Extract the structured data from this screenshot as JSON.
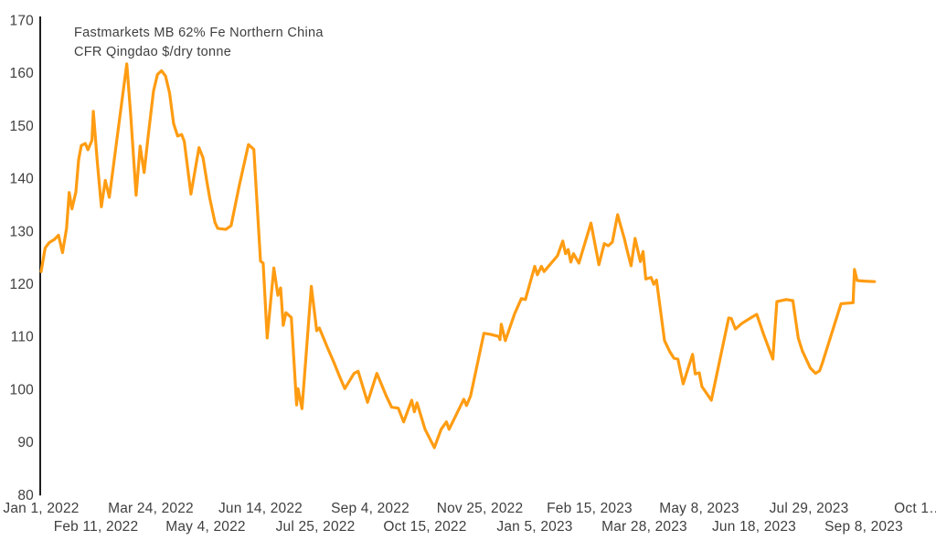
{
  "chart": {
    "title_line1": "Fastmarkets MB 62% Fe Northern China",
    "title_line2": "CFR Qingdao $/dry tonne"
  },
  "chart_data": {
    "type": "line",
    "title": "Fastmarkets MB 62% Fe Northern China CFR Qingdao $/dry tonne",
    "xlabel": "",
    "ylabel": "",
    "unit": "$/dry tonne",
    "ylim": [
      80,
      170
    ],
    "y_ticks": [
      170,
      160,
      150,
      140,
      130,
      120,
      110,
      100,
      90,
      80
    ],
    "x_axis_span_days": 656,
    "x_unit": "days since Jan 1, 2022",
    "grid": false,
    "legend": "none",
    "line_color": "#FF9C12",
    "text_color": "#3F3F3F",
    "axis_color": "#1F1F1F",
    "x_ticks": [
      {
        "label": "Jan 1, 2022",
        "day": 0,
        "row": 1
      },
      {
        "label": "Feb 11, 2022",
        "day": 41,
        "row": 2
      },
      {
        "label": "Mar 24, 2022",
        "day": 82,
        "row": 1
      },
      {
        "label": "May 4, 2022",
        "day": 123,
        "row": 2
      },
      {
        "label": "Jun 14, 2022",
        "day": 164,
        "row": 1
      },
      {
        "label": "Jul 25, 2022",
        "day": 205,
        "row": 2
      },
      {
        "label": "Sep 4, 2022",
        "day": 246,
        "row": 1
      },
      {
        "label": "Oct 15, 2022",
        "day": 287,
        "row": 2
      },
      {
        "label": "Nov 25, 2022",
        "day": 328,
        "row": 1
      },
      {
        "label": "Jan 5, 2023",
        "day": 369,
        "row": 2
      },
      {
        "label": "Feb 15, 2023",
        "day": 410,
        "row": 1
      },
      {
        "label": "Mar 28, 2023",
        "day": 451,
        "row": 2
      },
      {
        "label": "May 8, 2023",
        "day": 492,
        "row": 1
      },
      {
        "label": "Jun 18, 2023",
        "day": 533,
        "row": 2
      },
      {
        "label": "Jul 29, 2023",
        "day": 574,
        "row": 1
      },
      {
        "label": "Sep 8, 2023",
        "day": 615,
        "row": 2
      },
      {
        "label": "Oct 1…",
        "day": 656,
        "row": 1
      }
    ],
    "series": [
      {
        "name": "Fastmarkets MB 62% Fe Northern China CFR Qingdao $/dry tonne",
        "points": [
          [
            0,
            122.3
          ],
          [
            3,
            126.8
          ],
          [
            6,
            127.8
          ],
          [
            10,
            128.4
          ],
          [
            13,
            129.2
          ],
          [
            16,
            125.9
          ],
          [
            19,
            130.5
          ],
          [
            21,
            137.3
          ],
          [
            23,
            134.2
          ],
          [
            26,
            137.4
          ],
          [
            28,
            143.5
          ],
          [
            30,
            146.2
          ],
          [
            33,
            146.6
          ],
          [
            35,
            145.4
          ],
          [
            38,
            147.2
          ],
          [
            39,
            152.7
          ],
          [
            42,
            143.0
          ],
          [
            45,
            134.6
          ],
          [
            48,
            139.6
          ],
          [
            51,
            136.4
          ],
          [
            64,
            161.7
          ],
          [
            67,
            152.0
          ],
          [
            71,
            136.8
          ],
          [
            74,
            146.1
          ],
          [
            77,
            141.1
          ],
          [
            80,
            148.0
          ],
          [
            84,
            156.5
          ],
          [
            87,
            159.7
          ],
          [
            90,
            160.4
          ],
          [
            93,
            159.4
          ],
          [
            96,
            156.2
          ],
          [
            99,
            150.4
          ],
          [
            102,
            148.0
          ],
          [
            105,
            148.3
          ],
          [
            107,
            147.0
          ],
          [
            112,
            137.0
          ],
          [
            118,
            145.8
          ],
          [
            121,
            143.9
          ],
          [
            124,
            139.2
          ],
          [
            126,
            136.3
          ],
          [
            130,
            131.6
          ],
          [
            132,
            130.5
          ],
          [
            138,
            130.3
          ],
          [
            142,
            131.0
          ],
          [
            148,
            138.5
          ],
          [
            155,
            146.4
          ],
          [
            159,
            145.5
          ],
          [
            164,
            124.3
          ],
          [
            166,
            123.9
          ],
          [
            169,
            109.7
          ],
          [
            174,
            123.0
          ],
          [
            177,
            117.8
          ],
          [
            179,
            119.2
          ],
          [
            181,
            112.1
          ],
          [
            183,
            114.5
          ],
          [
            187,
            113.6
          ],
          [
            191,
            97.0
          ],
          [
            192,
            100.1
          ],
          [
            195,
            96.3
          ],
          [
            202,
            119.5
          ],
          [
            206,
            111.1
          ],
          [
            208,
            111.6
          ],
          [
            214,
            107.9
          ],
          [
            219,
            105.0
          ],
          [
            223,
            102.5
          ],
          [
            227,
            100.1
          ],
          [
            234,
            103.0
          ],
          [
            237,
            103.4
          ],
          [
            244,
            97.5
          ],
          [
            251,
            103.0
          ],
          [
            258,
            98.7
          ],
          [
            262,
            96.6
          ],
          [
            267,
            96.4
          ],
          [
            271,
            93.8
          ],
          [
            277,
            97.9
          ],
          [
            279,
            95.7
          ],
          [
            281,
            97.4
          ],
          [
            287,
            92.4
          ],
          [
            294,
            88.9
          ],
          [
            299,
            92.4
          ],
          [
            303,
            93.8
          ],
          [
            305,
            92.4
          ],
          [
            316,
            98.1
          ],
          [
            318,
            96.9
          ],
          [
            321,
            98.7
          ],
          [
            331,
            110.6
          ],
          [
            336,
            110.4
          ],
          [
            342,
            110.0
          ],
          [
            343,
            109.4
          ],
          [
            344,
            112.3
          ],
          [
            347,
            109.2
          ],
          [
            354,
            114.3
          ],
          [
            359,
            117.2
          ],
          [
            362,
            117.0
          ],
          [
            369,
            123.3
          ],
          [
            371,
            121.7
          ],
          [
            374,
            123.3
          ],
          [
            376,
            122.3
          ],
          [
            386,
            125.3
          ],
          [
            390,
            128.1
          ],
          [
            392,
            125.7
          ],
          [
            394,
            126.5
          ],
          [
            396,
            124.1
          ],
          [
            398,
            125.7
          ],
          [
            402,
            123.9
          ],
          [
            411,
            131.5
          ],
          [
            417,
            123.6
          ],
          [
            421,
            127.6
          ],
          [
            424,
            127.2
          ],
          [
            427,
            127.9
          ],
          [
            431,
            133.1
          ],
          [
            433,
            131.2
          ],
          [
            436,
            128.6
          ],
          [
            438,
            126.4
          ],
          [
            441,
            123.4
          ],
          [
            444,
            128.6
          ],
          [
            448,
            124.2
          ],
          [
            450,
            126.1
          ],
          [
            452,
            120.9
          ],
          [
            456,
            121.2
          ],
          [
            458,
            119.9
          ],
          [
            460,
            120.7
          ],
          [
            466,
            109.2
          ],
          [
            470,
            107.1
          ],
          [
            473,
            105.9
          ],
          [
            476,
            105.7
          ],
          [
            480,
            101.0
          ],
          [
            487,
            106.6
          ],
          [
            489,
            102.9
          ],
          [
            492,
            103.1
          ],
          [
            494,
            100.5
          ],
          [
            501,
            97.9
          ],
          [
            514,
            113.5
          ],
          [
            516,
            113.4
          ],
          [
            519,
            111.4
          ],
          [
            524,
            112.5
          ],
          [
            531,
            113.6
          ],
          [
            535,
            114.2
          ],
          [
            540,
            110.5
          ],
          [
            547,
            105.7
          ],
          [
            550,
            116.6
          ],
          [
            557,
            117.0
          ],
          [
            562,
            116.8
          ],
          [
            566,
            109.7
          ],
          [
            569,
            107.3
          ],
          [
            575,
            104.0
          ],
          [
            579,
            103.0
          ],
          [
            582,
            103.5
          ],
          [
            584,
            104.9
          ],
          [
            598,
            116.2
          ],
          [
            603,
            116.3
          ],
          [
            607,
            116.4
          ],
          [
            608,
            122.7
          ],
          [
            610,
            120.6
          ],
          [
            615,
            120.5
          ],
          [
            623,
            120.4
          ]
        ]
      }
    ]
  }
}
